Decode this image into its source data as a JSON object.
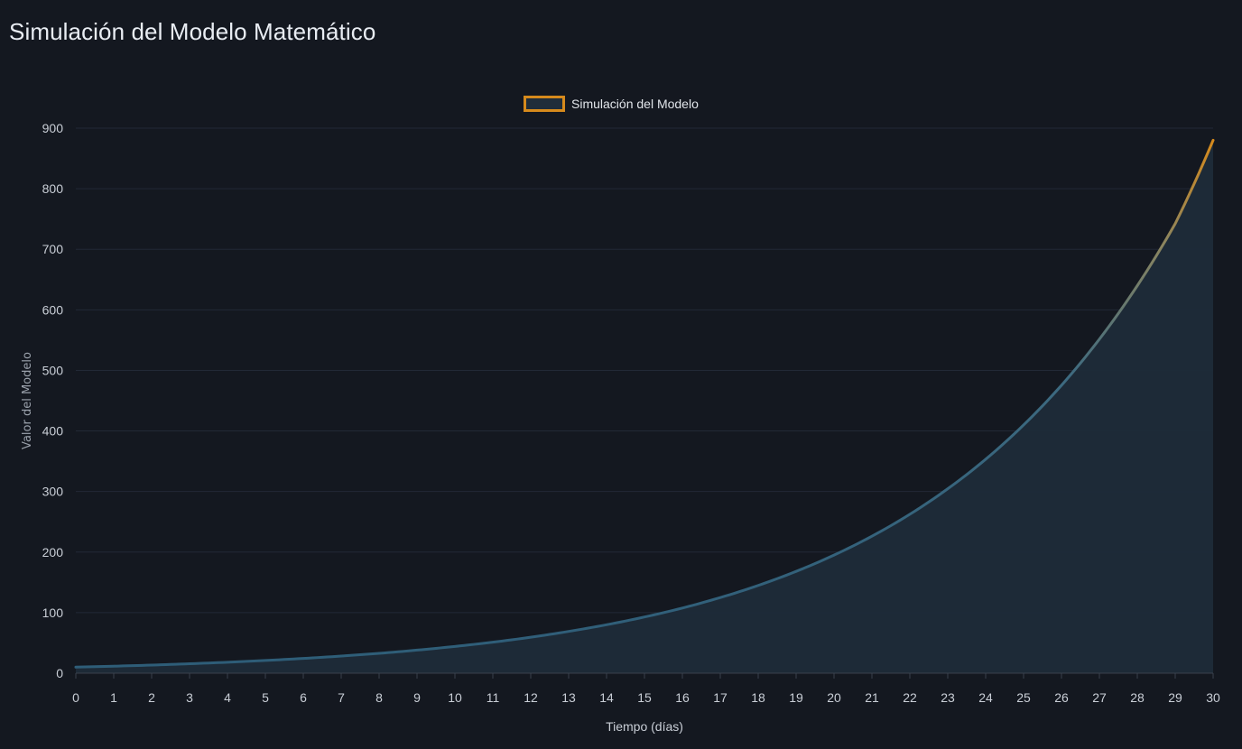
{
  "page": {
    "title": "Simulación del Modelo Matemático"
  },
  "chart_data": {
    "type": "area",
    "title": "Simulación del Modelo Matemático",
    "xlabel": "Tiempo (días)",
    "ylabel": "Valor del Modelo",
    "legend_position": "top-center",
    "grid": true,
    "xlim": [
      0,
      30
    ],
    "ylim": [
      0,
      900
    ],
    "x_ticks": [
      0,
      1,
      2,
      3,
      4,
      5,
      6,
      7,
      8,
      9,
      10,
      11,
      12,
      13,
      14,
      15,
      16,
      17,
      18,
      19,
      20,
      21,
      22,
      23,
      24,
      25,
      26,
      27,
      28,
      29,
      30
    ],
    "y_ticks": [
      0,
      100,
      200,
      300,
      400,
      500,
      600,
      700,
      800,
      900
    ],
    "x": [
      0,
      1,
      2,
      3,
      4,
      5,
      6,
      7,
      8,
      9,
      10,
      11,
      12,
      13,
      14,
      15,
      16,
      17,
      18,
      19,
      20,
      21,
      22,
      23,
      24,
      25,
      26,
      27,
      28,
      29,
      30
    ],
    "series": [
      {
        "name": "Simulación del Modelo",
        "values": [
          10,
          11.6,
          13.4,
          15.6,
          18.1,
          21.0,
          24.4,
          28.3,
          32.8,
          38.1,
          44.2,
          51.2,
          59.4,
          69.0,
          80.0,
          92.8,
          107.6,
          124.9,
          144.9,
          168.1,
          195.0,
          226.2,
          262.4,
          304.5,
          353.2,
          409.8,
          475.4,
          551.5,
          639.8,
          742.2,
          880.0
        ]
      }
    ],
    "colors": {
      "line_start": "#2e5d78",
      "line_end": "#d68a1c",
      "fill": "#1d2b39",
      "grid": "#222936",
      "axis": "#3a414d",
      "background": "#141820"
    }
  }
}
